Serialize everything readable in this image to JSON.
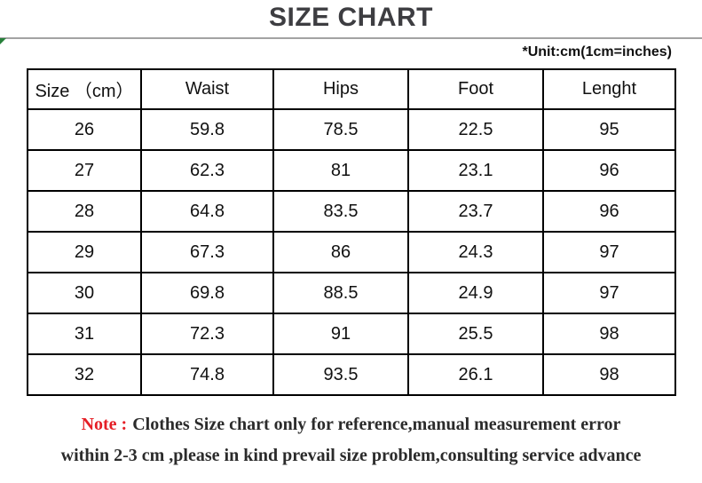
{
  "title": "SIZE CHART",
  "unit_note": "*Unit:cm(1cm=inches)",
  "chart_data": {
    "type": "table",
    "columns": [
      "Size （cm）",
      "Waist",
      "Hips",
      "Foot",
      "Lenght"
    ],
    "rows": [
      [
        "26",
        "59.8",
        "78.5",
        "22.5",
        "95"
      ],
      [
        "27",
        "62.3",
        "81",
        "23.1",
        "96"
      ],
      [
        "28",
        "64.8",
        "83.5",
        "23.7",
        "96"
      ],
      [
        "29",
        "67.3",
        "86",
        "24.3",
        "97"
      ],
      [
        "30",
        "69.8",
        "88.5",
        "24.9",
        "97"
      ],
      [
        "31",
        "72.3",
        "91",
        "25.5",
        "98"
      ],
      [
        "32",
        "74.8",
        "93.5",
        "26.1",
        "98"
      ]
    ]
  },
  "note": {
    "label": "Note :",
    "line1": "Clothes Size chart only for reference,manual measurement error",
    "line2": "within 2-3 cm ,please in kind prevail size problem,consulting service advance"
  },
  "colors": {
    "title": "#3d3d41",
    "note_label": "#e51e25",
    "note_text": "#2b2b2b",
    "table_border": "#000000",
    "divider": "#a3a3a3",
    "corner_marker": "#27803a"
  }
}
